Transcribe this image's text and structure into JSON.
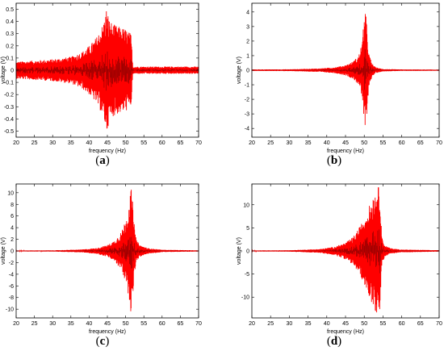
{
  "colors": {
    "signal": "#ff0000",
    "axis": "#000000",
    "dark": "#3a0000"
  },
  "chart_data": [
    {
      "type": "line",
      "panel": "(a)",
      "caption": "a",
      "xlabel": "frequency (Hz)",
      "ylabel": "voltage (V)",
      "xlim": [
        20,
        70
      ],
      "ylim": [
        -0.55,
        0.55
      ],
      "xticks": [
        "20",
        "25",
        "30",
        "35",
        "40",
        "45",
        "50",
        "55",
        "60",
        "65",
        "70"
      ],
      "yticks": [
        "0.5",
        "0.4",
        "0.3",
        "0.2",
        "0.1",
        "0",
        "-0.1",
        "-0.2",
        "-0.3",
        "-0.4",
        "-0.5"
      ],
      "ytick_values": [
        0.5,
        0.4,
        0.3,
        0.2,
        0.1,
        0,
        -0.1,
        -0.2,
        -0.3,
        -0.4,
        -0.5
      ],
      "envelope": {
        "x": [
          20,
          25,
          30,
          35,
          38,
          40,
          42,
          43,
          44,
          44.8,
          45.5,
          46.5,
          48,
          50,
          51.5,
          52,
          60,
          70
        ],
        "amplitude": [
          0.07,
          0.08,
          0.09,
          0.11,
          0.15,
          0.2,
          0.27,
          0.33,
          0.4,
          0.52,
          0.42,
          0.38,
          0.36,
          0.34,
          0.3,
          0.03,
          0.03,
          0.03
        ]
      }
    },
    {
      "type": "line",
      "panel": "(b)",
      "caption": "b",
      "xlabel": "frequency (Hz)",
      "ylabel": "voltage (V)",
      "xlim": [
        20,
        70
      ],
      "ylim": [
        -4.6,
        4.6
      ],
      "xticks": [
        "20",
        "25",
        "30",
        "35",
        "40",
        "45",
        "50",
        "55",
        "60",
        "65",
        "70"
      ],
      "yticks": [
        "4",
        "3",
        "2",
        "1",
        "0",
        "-1",
        "-2",
        "-3",
        "-4"
      ],
      "ytick_values": [
        4,
        3,
        2,
        1,
        0,
        -1,
        -2,
        -3,
        -4
      ],
      "envelope": {
        "x": [
          20,
          30,
          38,
          42,
          45,
          47,
          48.5,
          49.5,
          50.2,
          50.7,
          51.2,
          52,
          53,
          55,
          60,
          70
        ],
        "amplitude": [
          0.05,
          0.06,
          0.12,
          0.2,
          0.35,
          0.6,
          1.0,
          2.0,
          4.5,
          3.0,
          1.2,
          0.5,
          0.2,
          0.08,
          0.05,
          0.04
        ]
      }
    },
    {
      "type": "line",
      "panel": "(c)",
      "caption": "c",
      "xlabel": "frequency (Hz)",
      "ylabel": "voltage (V)",
      "xlim": [
        20,
        70
      ],
      "ylim": [
        -11.5,
        11.5
      ],
      "xticks": [
        "20",
        "25",
        "30",
        "35",
        "40",
        "45",
        "50",
        "55",
        "60",
        "65",
        "70"
      ],
      "yticks": [
        "10",
        "8",
        "6",
        "4",
        "2",
        "0",
        "-2",
        "-4",
        "-6",
        "-8",
        "-10"
      ],
      "ytick_values": [
        10,
        8,
        6,
        4,
        2,
        0,
        -2,
        -4,
        -6,
        -8,
        -10
      ],
      "envelope": {
        "x": [
          20,
          30,
          38,
          42,
          45,
          47,
          49,
          50.5,
          51.5,
          52,
          52.5,
          53,
          54,
          56,
          60,
          70
        ],
        "amplitude": [
          0.08,
          0.1,
          0.25,
          0.5,
          1.0,
          1.8,
          3.5,
          6.5,
          10.8,
          8.0,
          3.5,
          1.8,
          1.0,
          0.5,
          0.2,
          0.1
        ]
      }
    },
    {
      "type": "line",
      "panel": "(d)",
      "caption": "d",
      "xlabel": "frequency (Hz)",
      "ylabel": "voltage (V)",
      "xlim": [
        20,
        70
      ],
      "ylim": [
        -14.5,
        14.5
      ],
      "xticks": [
        "20",
        "25",
        "30",
        "35",
        "40",
        "45",
        "50",
        "55",
        "60",
        "65",
        "70"
      ],
      "yticks": [
        "10",
        "5",
        "0",
        "-5",
        "-10"
      ],
      "ytick_values": [
        10,
        5,
        0,
        -5,
        -10
      ],
      "envelope": {
        "x": [
          20,
          30,
          38,
          42,
          45,
          47,
          49,
          51,
          52.5,
          53.5,
          54.2,
          54.7,
          55.5,
          57,
          60,
          70
        ],
        "amplitude": [
          0.1,
          0.15,
          0.4,
          0.9,
          1.8,
          3.0,
          5.5,
          9.0,
          12.5,
          13.8,
          14.0,
          3.0,
          1.2,
          0.6,
          0.3,
          0.15
        ]
      }
    }
  ]
}
